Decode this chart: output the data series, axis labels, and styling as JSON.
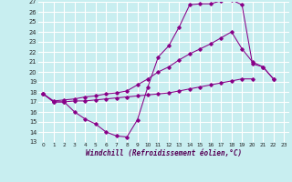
{
  "background_color": "#c8eef0",
  "grid_color": "#ffffff",
  "line_color": "#880088",
  "xlabel": "Windchill (Refroidissement éolien,°C)",
  "xlim_min": -0.5,
  "xlim_max": 23.5,
  "ylim_min": 13,
  "ylim_max": 27,
  "xticks": [
    0,
    1,
    2,
    3,
    4,
    5,
    6,
    7,
    8,
    9,
    10,
    11,
    12,
    13,
    14,
    15,
    16,
    17,
    18,
    19,
    20,
    21,
    22,
    23
  ],
  "yticks": [
    13,
    14,
    15,
    16,
    17,
    18,
    19,
    20,
    21,
    22,
    23,
    24,
    25,
    26,
    27
  ],
  "line1_x": [
    0,
    1,
    2,
    3,
    4,
    5,
    6,
    7,
    8,
    9,
    10,
    11,
    12,
    13,
    14,
    15,
    16,
    17,
    18,
    19,
    20,
    21,
    22
  ],
  "line1_y": [
    17.8,
    17.0,
    17.0,
    16.0,
    15.3,
    14.8,
    14.0,
    13.6,
    13.5,
    15.2,
    18.5,
    21.5,
    22.6,
    24.5,
    26.7,
    26.8,
    26.8,
    27.1,
    27.2,
    26.7,
    20.8,
    20.5,
    19.3
  ],
  "line2_x": [
    0,
    1,
    2,
    3,
    4,
    5,
    6,
    7,
    8,
    9,
    10,
    11,
    12,
    13,
    14,
    15,
    16,
    17,
    18,
    19,
    20,
    21,
    22
  ],
  "line2_y": [
    17.8,
    17.1,
    17.2,
    17.3,
    17.5,
    17.6,
    17.8,
    17.9,
    18.1,
    18.7,
    19.3,
    20.0,
    20.5,
    21.2,
    21.8,
    22.3,
    22.8,
    23.4,
    24.0,
    22.3,
    21.0,
    20.5,
    19.3
  ],
  "line3_x": [
    0,
    1,
    2,
    3,
    4,
    5,
    6,
    7,
    8,
    9,
    10,
    11,
    12,
    13,
    14,
    15,
    16,
    17,
    18,
    19,
    20,
    21,
    22
  ],
  "line3_y": [
    17.8,
    17.0,
    17.0,
    17.1,
    17.1,
    17.2,
    17.3,
    17.4,
    17.5,
    17.6,
    17.7,
    17.8,
    17.9,
    18.1,
    18.3,
    18.5,
    18.7,
    18.9,
    19.1,
    19.3,
    19.3,
    null,
    null
  ]
}
